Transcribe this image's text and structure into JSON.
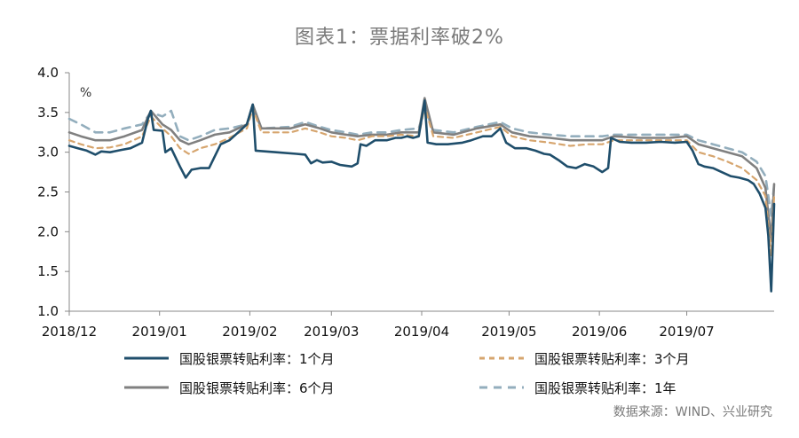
{
  "title": "图表1：票据利率破2%",
  "source": "数据来源：WIND、兴业研究",
  "colors": {
    "m1": "#1f4e6b",
    "m3": "#d6a56e",
    "m6": "#808080",
    "y1": "#93aebd"
  },
  "chart_data": {
    "type": "line",
    "title": "图表1：票据利率破2%",
    "unit_label": "%",
    "ylim": [
      1.0,
      4.0
    ],
    "y_ticks": [
      "4.0",
      "3.5",
      "3.0",
      "2.5",
      "2.0",
      "1.5",
      "1.0"
    ],
    "x_ticks": [
      "2018/12",
      "2019/01",
      "2019/02",
      "2019/03",
      "2019/04",
      "2019/05",
      "2019/06",
      "2019/07"
    ],
    "x_range": [
      "2018-12-01",
      "2019-07-31"
    ],
    "grid": false,
    "legend_position": "bottom",
    "series": [
      {
        "name": "国股银票转贴利率：1个月",
        "style": "solid",
        "points": [
          [
            "2018-12-01",
            3.08
          ],
          [
            "2018-12-04",
            3.05
          ],
          [
            "2018-12-07",
            3.02
          ],
          [
            "2018-12-10",
            2.97
          ],
          [
            "2018-12-12",
            3.01
          ],
          [
            "2018-12-15",
            3.0
          ],
          [
            "2018-12-19",
            3.03
          ],
          [
            "2018-12-22",
            3.05
          ],
          [
            "2018-12-26",
            3.12
          ],
          [
            "2018-12-28",
            3.42
          ],
          [
            "2018-12-29",
            3.52
          ],
          [
            "2018-12-30",
            3.28
          ],
          [
            "2019-01-02",
            3.27
          ],
          [
            "2019-01-03",
            3.0
          ],
          [
            "2019-01-05",
            3.05
          ],
          [
            "2019-01-08",
            2.82
          ],
          [
            "2019-01-10",
            2.68
          ],
          [
            "2019-01-12",
            2.78
          ],
          [
            "2019-01-15",
            2.8
          ],
          [
            "2019-01-18",
            2.8
          ],
          [
            "2019-01-20",
            2.95
          ],
          [
            "2019-01-22",
            3.1
          ],
          [
            "2019-01-25",
            3.15
          ],
          [
            "2019-01-28",
            3.25
          ],
          [
            "2019-01-31",
            3.35
          ],
          [
            "2019-02-02",
            3.6
          ],
          [
            "2019-02-03",
            3.02
          ],
          [
            "2019-02-10",
            3.0
          ],
          [
            "2019-02-17",
            2.98
          ],
          [
            "2019-02-20",
            2.97
          ],
          [
            "2019-02-22",
            2.86
          ],
          [
            "2019-02-24",
            2.9
          ],
          [
            "2019-02-26",
            2.87
          ],
          [
            "2019-03-01",
            2.88
          ],
          [
            "2019-03-04",
            2.84
          ],
          [
            "2019-03-06",
            2.83
          ],
          [
            "2019-03-08",
            2.82
          ],
          [
            "2019-03-10",
            2.86
          ],
          [
            "2019-03-11",
            3.1
          ],
          [
            "2019-03-13",
            3.08
          ],
          [
            "2019-03-16",
            3.15
          ],
          [
            "2019-03-20",
            3.15
          ],
          [
            "2019-03-23",
            3.18
          ],
          [
            "2019-03-25",
            3.18
          ],
          [
            "2019-03-27",
            3.2
          ],
          [
            "2019-03-29",
            3.18
          ],
          [
            "2019-03-31",
            3.2
          ],
          [
            "2019-04-02",
            3.65
          ],
          [
            "2019-04-03",
            3.12
          ],
          [
            "2019-04-06",
            3.1
          ],
          [
            "2019-04-10",
            3.1
          ],
          [
            "2019-04-15",
            3.12
          ],
          [
            "2019-04-18",
            3.15
          ],
          [
            "2019-04-22",
            3.2
          ],
          [
            "2019-04-25",
            3.2
          ],
          [
            "2019-04-28",
            3.3
          ],
          [
            "2019-04-30",
            3.12
          ],
          [
            "2019-05-03",
            3.05
          ],
          [
            "2019-05-07",
            3.05
          ],
          [
            "2019-05-10",
            3.02
          ],
          [
            "2019-05-13",
            2.98
          ],
          [
            "2019-05-15",
            2.97
          ],
          [
            "2019-05-18",
            2.9
          ],
          [
            "2019-05-21",
            2.82
          ],
          [
            "2019-05-24",
            2.8
          ],
          [
            "2019-05-27",
            2.85
          ],
          [
            "2019-05-30",
            2.82
          ],
          [
            "2019-06-02",
            2.75
          ],
          [
            "2019-06-04",
            2.8
          ],
          [
            "2019-06-05",
            3.18
          ],
          [
            "2019-06-08",
            3.13
          ],
          [
            "2019-06-12",
            3.12
          ],
          [
            "2019-06-17",
            3.12
          ],
          [
            "2019-06-22",
            3.13
          ],
          [
            "2019-06-27",
            3.12
          ],
          [
            "2019-07-01",
            3.13
          ],
          [
            "2019-07-03",
            3.02
          ],
          [
            "2019-07-05",
            2.85
          ],
          [
            "2019-07-07",
            2.82
          ],
          [
            "2019-07-10",
            2.8
          ],
          [
            "2019-07-13",
            2.75
          ],
          [
            "2019-07-16",
            2.7
          ],
          [
            "2019-07-19",
            2.68
          ],
          [
            "2019-07-22",
            2.65
          ],
          [
            "2019-07-24",
            2.6
          ],
          [
            "2019-07-26",
            2.48
          ],
          [
            "2019-07-28",
            2.3
          ],
          [
            "2019-07-29",
            1.95
          ],
          [
            "2019-07-30",
            1.25
          ],
          [
            "2019-07-31",
            2.35
          ]
        ]
      },
      {
        "name": "国股银票转贴利率：3个月",
        "style": "dashed",
        "points": [
          [
            "2018-12-01",
            3.15
          ],
          [
            "2018-12-05",
            3.1
          ],
          [
            "2018-12-10",
            3.05
          ],
          [
            "2018-12-15",
            3.06
          ],
          [
            "2018-12-20",
            3.1
          ],
          [
            "2018-12-26",
            3.2
          ],
          [
            "2018-12-29",
            3.45
          ],
          [
            "2019-01-02",
            3.3
          ],
          [
            "2019-01-05",
            3.2
          ],
          [
            "2019-01-08",
            3.05
          ],
          [
            "2019-01-11",
            2.98
          ],
          [
            "2019-01-15",
            3.05
          ],
          [
            "2019-01-20",
            3.1
          ],
          [
            "2019-01-25",
            3.18
          ],
          [
            "2019-01-31",
            3.3
          ],
          [
            "2019-02-02",
            3.55
          ],
          [
            "2019-02-05",
            3.25
          ],
          [
            "2019-02-15",
            3.25
          ],
          [
            "2019-02-20",
            3.3
          ],
          [
            "2019-02-25",
            3.25
          ],
          [
            "2019-03-01",
            3.2
          ],
          [
            "2019-03-06",
            3.18
          ],
          [
            "2019-03-10",
            3.15
          ],
          [
            "2019-03-15",
            3.2
          ],
          [
            "2019-03-20",
            3.2
          ],
          [
            "2019-03-25",
            3.22
          ],
          [
            "2019-03-31",
            3.2
          ],
          [
            "2019-04-02",
            3.58
          ],
          [
            "2019-04-05",
            3.2
          ],
          [
            "2019-04-12",
            3.18
          ],
          [
            "2019-04-20",
            3.25
          ],
          [
            "2019-04-28",
            3.32
          ],
          [
            "2019-05-02",
            3.2
          ],
          [
            "2019-05-08",
            3.15
          ],
          [
            "2019-05-15",
            3.12
          ],
          [
            "2019-05-22",
            3.08
          ],
          [
            "2019-05-28",
            3.1
          ],
          [
            "2019-06-02",
            3.1
          ],
          [
            "2019-06-06",
            3.15
          ],
          [
            "2019-06-15",
            3.15
          ],
          [
            "2019-06-25",
            3.15
          ],
          [
            "2019-07-01",
            3.15
          ],
          [
            "2019-07-05",
            3.0
          ],
          [
            "2019-07-10",
            2.95
          ],
          [
            "2019-07-15",
            2.88
          ],
          [
            "2019-07-20",
            2.8
          ],
          [
            "2019-07-25",
            2.65
          ],
          [
            "2019-07-28",
            2.45
          ],
          [
            "2019-07-30",
            1.7
          ],
          [
            "2019-07-31",
            2.45
          ]
        ]
      },
      {
        "name": "国股银票转贴利率：6个月",
        "style": "solid",
        "points": [
          [
            "2018-12-01",
            3.25
          ],
          [
            "2018-12-05",
            3.2
          ],
          [
            "2018-12-10",
            3.15
          ],
          [
            "2018-12-15",
            3.15
          ],
          [
            "2018-12-20",
            3.2
          ],
          [
            "2018-12-26",
            3.28
          ],
          [
            "2018-12-29",
            3.52
          ],
          [
            "2019-01-02",
            3.35
          ],
          [
            "2019-01-05",
            3.28
          ],
          [
            "2019-01-08",
            3.15
          ],
          [
            "2019-01-11",
            3.1
          ],
          [
            "2019-01-15",
            3.15
          ],
          [
            "2019-01-20",
            3.22
          ],
          [
            "2019-01-25",
            3.25
          ],
          [
            "2019-01-31",
            3.35
          ],
          [
            "2019-02-02",
            3.6
          ],
          [
            "2019-02-05",
            3.3
          ],
          [
            "2019-02-15",
            3.3
          ],
          [
            "2019-02-20",
            3.35
          ],
          [
            "2019-02-25",
            3.3
          ],
          [
            "2019-03-01",
            3.25
          ],
          [
            "2019-03-06",
            3.22
          ],
          [
            "2019-03-10",
            3.2
          ],
          [
            "2019-03-15",
            3.22
          ],
          [
            "2019-03-20",
            3.22
          ],
          [
            "2019-03-25",
            3.25
          ],
          [
            "2019-03-31",
            3.25
          ],
          [
            "2019-04-02",
            3.68
          ],
          [
            "2019-04-05",
            3.25
          ],
          [
            "2019-04-12",
            3.22
          ],
          [
            "2019-04-20",
            3.3
          ],
          [
            "2019-04-28",
            3.35
          ],
          [
            "2019-05-02",
            3.25
          ],
          [
            "2019-05-08",
            3.2
          ],
          [
            "2019-05-15",
            3.18
          ],
          [
            "2019-05-22",
            3.15
          ],
          [
            "2019-05-28",
            3.15
          ],
          [
            "2019-06-02",
            3.15
          ],
          [
            "2019-06-06",
            3.2
          ],
          [
            "2019-06-15",
            3.18
          ],
          [
            "2019-06-25",
            3.18
          ],
          [
            "2019-07-01",
            3.2
          ],
          [
            "2019-07-05",
            3.1
          ],
          [
            "2019-07-10",
            3.05
          ],
          [
            "2019-07-15",
            3.0
          ],
          [
            "2019-07-20",
            2.95
          ],
          [
            "2019-07-25",
            2.8
          ],
          [
            "2019-07-28",
            2.55
          ],
          [
            "2019-07-30",
            1.9
          ],
          [
            "2019-07-31",
            2.6
          ]
        ]
      },
      {
        "name": "国股银票转贴利率：1年",
        "style": "dashed",
        "points": [
          [
            "2018-12-01",
            3.42
          ],
          [
            "2018-12-05",
            3.35
          ],
          [
            "2018-12-10",
            3.25
          ],
          [
            "2018-12-15",
            3.25
          ],
          [
            "2018-12-20",
            3.3
          ],
          [
            "2018-12-26",
            3.35
          ],
          [
            "2018-12-29",
            3.5
          ],
          [
            "2019-01-02",
            3.45
          ],
          [
            "2019-01-05",
            3.52
          ],
          [
            "2019-01-08",
            3.2
          ],
          [
            "2019-01-11",
            3.15
          ],
          [
            "2019-01-15",
            3.2
          ],
          [
            "2019-01-20",
            3.28
          ],
          [
            "2019-01-25",
            3.3
          ],
          [
            "2019-01-31",
            3.35
          ],
          [
            "2019-02-02",
            3.55
          ],
          [
            "2019-02-05",
            3.3
          ],
          [
            "2019-02-15",
            3.32
          ],
          [
            "2019-02-20",
            3.38
          ],
          [
            "2019-02-25",
            3.32
          ],
          [
            "2019-03-01",
            3.28
          ],
          [
            "2019-03-06",
            3.25
          ],
          [
            "2019-03-10",
            3.22
          ],
          [
            "2019-03-15",
            3.25
          ],
          [
            "2019-03-20",
            3.25
          ],
          [
            "2019-03-25",
            3.28
          ],
          [
            "2019-03-31",
            3.3
          ],
          [
            "2019-04-02",
            3.55
          ],
          [
            "2019-04-05",
            3.28
          ],
          [
            "2019-04-12",
            3.25
          ],
          [
            "2019-04-20",
            3.32
          ],
          [
            "2019-04-28",
            3.38
          ],
          [
            "2019-05-02",
            3.3
          ],
          [
            "2019-05-08",
            3.25
          ],
          [
            "2019-05-15",
            3.22
          ],
          [
            "2019-05-22",
            3.2
          ],
          [
            "2019-05-28",
            3.2
          ],
          [
            "2019-06-02",
            3.2
          ],
          [
            "2019-06-06",
            3.22
          ],
          [
            "2019-06-15",
            3.22
          ],
          [
            "2019-06-25",
            3.22
          ],
          [
            "2019-07-01",
            3.22
          ],
          [
            "2019-07-05",
            3.15
          ],
          [
            "2019-07-10",
            3.1
          ],
          [
            "2019-07-15",
            3.05
          ],
          [
            "2019-07-20",
            3.0
          ],
          [
            "2019-07-25",
            2.88
          ],
          [
            "2019-07-28",
            2.7
          ],
          [
            "2019-07-30",
            2.2
          ],
          [
            "2019-07-31",
            2.6
          ]
        ]
      }
    ]
  }
}
